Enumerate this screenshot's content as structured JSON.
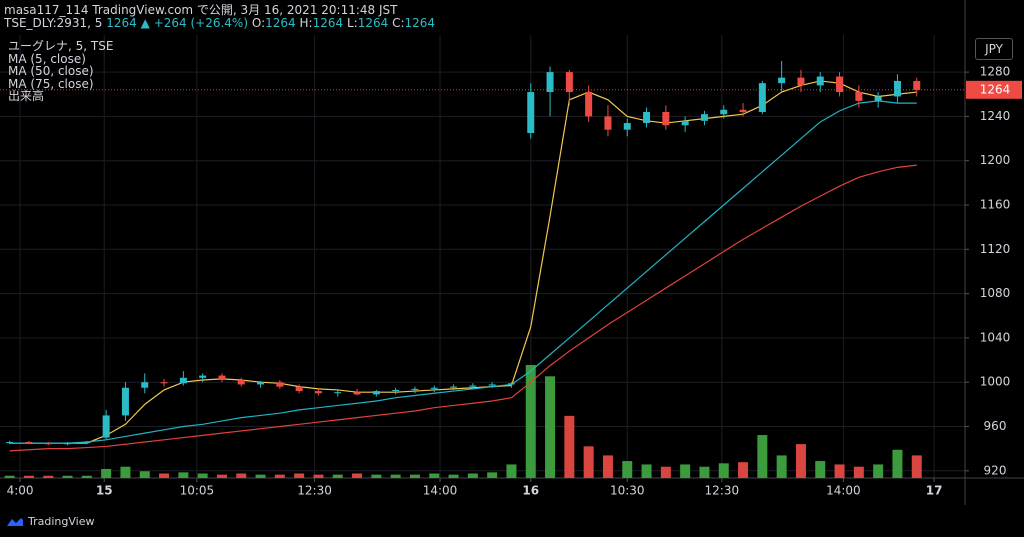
{
  "header": {
    "publisher": "masa117_114 TradingView.com で公開, 3月 16, 2021 20:11:48 JST",
    "symbol": "TSE_DLY:2931, 5",
    "last": "1264",
    "change": "▲ +264 (+26.4%)",
    "ohlc": [
      {
        "label": "O:",
        "value": "1264"
      },
      {
        "label": "H:",
        "value": "1264"
      },
      {
        "label": "L:",
        "value": "1264"
      },
      {
        "label": "C:",
        "value": "1264"
      }
    ],
    "currency": "JPY",
    "brand": "TradingView"
  },
  "chart_data": {
    "type": "candlestick",
    "title": "ユーグレナ, 5, TSE",
    "volume_label": "出来高",
    "up_color": "#2bbcc8",
    "down_color": "#ef4b45",
    "volume_up_color": "#3c9b3c",
    "volume_down_color": "#d9453f",
    "x": [
      0,
      1,
      2,
      3,
      4,
      5,
      6,
      7,
      8,
      9,
      10,
      11,
      12,
      13,
      14,
      15,
      16,
      17,
      18,
      19,
      20,
      21,
      22,
      23,
      24,
      25,
      26,
      27,
      28,
      29,
      30,
      31,
      32,
      33,
      34,
      35,
      36,
      37,
      38,
      39,
      40,
      41,
      42,
      43,
      44,
      45,
      46,
      47
    ],
    "open": [
      945,
      946,
      945,
      944,
      945,
      950,
      970,
      995,
      1000,
      999,
      1004,
      1006,
      1002,
      998,
      1000,
      996,
      992,
      990,
      991,
      989,
      992,
      993,
      994,
      995,
      996,
      997,
      998,
      1225,
      1262,
      1280,
      1262,
      1240,
      1228,
      1234,
      1244,
      1232,
      1236,
      1242,
      1246,
      1244,
      1270,
      1275,
      1268,
      1276,
      1262,
      1254,
      1258,
      1272
    ],
    "high": [
      947,
      947,
      946,
      946,
      947,
      975,
      1000,
      1008,
      1003,
      1010,
      1008,
      1008,
      1004,
      1001,
      1002,
      998,
      994,
      993,
      994,
      993,
      995,
      996,
      997,
      998,
      999,
      1000,
      1000,
      1270,
      1285,
      1282,
      1268,
      1250,
      1238,
      1248,
      1250,
      1240,
      1245,
      1250,
      1252,
      1272,
      1290,
      1282,
      1280,
      1280,
      1268,
      1262,
      1278,
      1275
    ],
    "low": [
      944,
      944,
      943,
      943,
      944,
      948,
      965,
      990,
      996,
      997,
      1000,
      1000,
      996,
      995,
      994,
      990,
      988,
      987,
      988,
      987,
      989,
      990,
      991,
      993,
      994,
      995,
      995,
      1220,
      1240,
      1250,
      1235,
      1222,
      1222,
      1230,
      1228,
      1226,
      1232,
      1238,
      1240,
      1242,
      1262,
      1262,
      1262,
      1258,
      1248,
      1248,
      1252,
      1258
    ],
    "close": [
      946,
      945,
      944,
      945,
      946,
      970,
      995,
      1000,
      999,
      1004,
      1006,
      1002,
      998,
      1000,
      996,
      992,
      990,
      991,
      989,
      992,
      993,
      994,
      995,
      996,
      997,
      998,
      999,
      1262,
      1280,
      1262,
      1240,
      1228,
      1234,
      1244,
      1232,
      1236,
      1242,
      1246,
      1244,
      1270,
      1275,
      1268,
      1276,
      1262,
      1254,
      1258,
      1272,
      1264
    ],
    "volume": [
      2,
      2,
      2,
      2,
      2,
      8,
      10,
      6,
      4,
      5,
      4,
      3,
      4,
      3,
      3,
      4,
      3,
      3,
      4,
      3,
      3,
      3,
      4,
      3,
      4,
      5,
      12,
      100,
      90,
      55,
      28,
      20,
      15,
      12,
      10,
      12,
      10,
      13,
      14,
      38,
      20,
      30,
      15,
      12,
      10,
      12,
      25,
      20
    ],
    "vlim": [
      0,
      100
    ],
    "series": [
      {
        "name": "MA (5, close)",
        "color": "#f2c94c",
        "values": [
          945,
          945,
          945,
          945,
          945,
          952,
          962,
          980,
          993,
          1000,
          1002,
          1003,
          1002,
          1000,
          999,
          996,
          994,
          993,
          991,
          991,
          991,
          992,
          993,
          994,
          995,
          996,
          997,
          1050,
          1150,
          1255,
          1262,
          1255,
          1240,
          1236,
          1234,
          1236,
          1238,
          1240,
          1242,
          1250,
          1262,
          1268,
          1272,
          1270,
          1262,
          1258,
          1260,
          1262
        ]
      },
      {
        "name": "MA (50, close)",
        "color": "#21b3c6",
        "values": [
          945,
          945,
          945,
          945,
          946,
          948,
          951,
          954,
          957,
          960,
          962,
          965,
          968,
          970,
          972,
          975,
          977,
          979,
          981,
          983,
          986,
          988,
          990,
          992,
          994,
          996,
          998,
          1010,
          1025,
          1040,
          1055,
          1070,
          1085,
          1100,
          1115,
          1130,
          1145,
          1160,
          1175,
          1190,
          1205,
          1220,
          1235,
          1245,
          1252,
          1254,
          1252,
          1252
        ]
      },
      {
        "name": "MA (75, close)",
        "color": "#e0433b",
        "values": [
          938,
          939,
          940,
          940,
          941,
          942,
          944,
          946,
          948,
          950,
          952,
          954,
          956,
          958,
          960,
          962,
          964,
          966,
          968,
          970,
          972,
          974,
          977,
          979,
          981,
          983,
          986,
          1000,
          1015,
          1028,
          1040,
          1052,
          1063,
          1074,
          1085,
          1096,
          1107,
          1118,
          1129,
          1139,
          1149,
          1159,
          1168,
          1177,
          1185,
          1190,
          1194,
          1196
        ]
      }
    ],
    "last_price": 1264,
    "xlim": [
      -0.5,
      49.5
    ],
    "xticks": [
      {
        "value": 0.54,
        "label": "4:00"
      },
      {
        "value": 4.9,
        "label": "15"
      },
      {
        "value": 9.7,
        "label": "10:05"
      },
      {
        "value": 15.8,
        "label": "12:30"
      },
      {
        "value": 22.3,
        "label": "14:00"
      },
      {
        "value": 27.0,
        "label": "16"
      },
      {
        "value": 32.0,
        "label": "10:30"
      },
      {
        "value": 36.9,
        "label": "12:30"
      },
      {
        "value": 43.2,
        "label": "14:00"
      },
      {
        "value": 47.9,
        "label": "17"
      }
    ],
    "ylim": [
      913.5,
      1313.5
    ],
    "yticks": [
      920,
      960,
      1000,
      1040,
      1080,
      1120,
      1160,
      1200,
      1240,
      1280
    ],
    "grid": true
  }
}
